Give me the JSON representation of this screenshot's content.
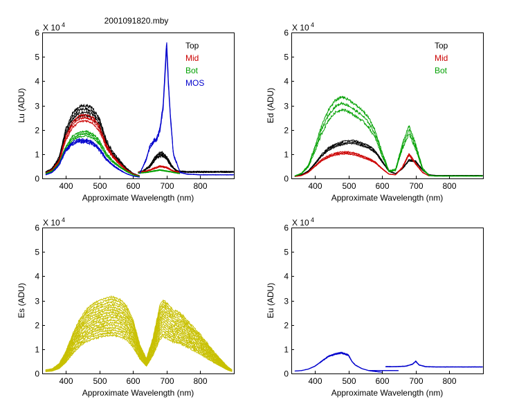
{
  "title": "2001091820.mby",
  "chart_data": [
    {
      "id": "lu",
      "type": "line",
      "ylabel": "Lu (ADU)",
      "xlabel": "Approximate Wavelength (nm)",
      "xlim": [
        330,
        900
      ],
      "xticks": [
        400,
        500,
        600,
        700,
        800
      ],
      "ylim": [
        0,
        6
      ],
      "yticks": [
        0,
        1,
        2,
        3,
        4,
        5,
        6
      ],
      "yscale_label": "X 10",
      "yscale_exp": "4",
      "legend": [
        {
          "label": "Top",
          "color": "#000000"
        },
        {
          "label": "Mid",
          "color": "#cc0000"
        },
        {
          "label": "Bot",
          "color": "#00a000"
        },
        {
          "label": "MOS",
          "color": "#0000cc"
        }
      ],
      "series": [
        {
          "name": "Top",
          "color": "#000000",
          "copies": 4,
          "spread": 0.22,
          "noise": 0.12,
          "segments": [
            {
              "x": [
                340,
                360,
                380,
                400,
                420,
                440,
                460,
                480,
                500,
                520,
                540,
                560,
                580,
                600,
                620
              ],
              "y": [
                0.25,
                0.4,
                0.8,
                1.9,
                2.5,
                2.75,
                2.8,
                2.7,
                2.3,
                1.5,
                1.0,
                0.7,
                0.4,
                0.2,
                0.1
              ]
            },
            {
              "x": [
                615,
                630,
                650,
                670,
                685,
                700,
                715,
                730,
                760,
                800,
                850,
                900
              ],
              "y": [
                0.25,
                0.3,
                0.5,
                0.9,
                1.0,
                0.85,
                0.5,
                0.3,
                0.27,
                0.27,
                0.27,
                0.27
              ]
            }
          ]
        },
        {
          "name": "Mid",
          "color": "#cc0000",
          "copies": 3,
          "spread": 0.15,
          "noise": 0.08,
          "segments": [
            {
              "x": [
                340,
                360,
                380,
                400,
                420,
                440,
                460,
                480,
                500,
                520,
                540,
                560,
                580,
                600,
                620
              ],
              "y": [
                0.22,
                0.35,
                0.7,
                1.65,
                2.2,
                2.45,
                2.5,
                2.4,
                2.05,
                1.35,
                0.9,
                0.6,
                0.35,
                0.18,
                0.1
              ]
            },
            {
              "x": [
                615,
                640,
                660,
                680,
                700,
                720,
                740
              ],
              "y": [
                0.25,
                0.3,
                0.4,
                0.5,
                0.45,
                0.3,
                0.25
              ]
            }
          ]
        },
        {
          "name": "Bot",
          "color": "#00a000",
          "copies": 3,
          "spread": 0.15,
          "noise": 0.07,
          "segments": [
            {
              "x": [
                340,
                360,
                380,
                400,
                420,
                440,
                460,
                480,
                500,
                520,
                540,
                560,
                580,
                600,
                620
              ],
              "y": [
                0.2,
                0.3,
                0.6,
                1.25,
                1.65,
                1.8,
                1.85,
                1.75,
                1.5,
                1.0,
                0.7,
                0.48,
                0.3,
                0.15,
                0.08
              ]
            },
            {
              "x": [
                615,
                640,
                660,
                680,
                700,
                720,
                740
              ],
              "y": [
                0.22,
                0.25,
                0.3,
                0.35,
                0.3,
                0.25,
                0.2
              ]
            }
          ]
        },
        {
          "name": "MOS",
          "color": "#0000cc",
          "copies": 3,
          "spread": 0.1,
          "noise": 0.1,
          "segments": [
            {
              "x": [
                340,
                360,
                380,
                400,
                420,
                440,
                460,
                480,
                500,
                520,
                540,
                560,
                580,
                600,
                620
              ],
              "y": [
                0.15,
                0.25,
                0.55,
                1.15,
                1.45,
                1.55,
                1.55,
                1.45,
                1.2,
                0.8,
                0.55,
                0.35,
                0.2,
                0.1,
                0.05
              ]
            },
            {
              "x": [
                620,
                640,
                650,
                660,
                670,
                680,
                690,
                695,
                700,
                705,
                710,
                720,
                740,
                760,
                800,
                850,
                900
              ],
              "y": [
                0.2,
                0.8,
                1.3,
                1.5,
                1.6,
                2.0,
                3.0,
                4.3,
                5.5,
                4.0,
                2.8,
                1.0,
                0.25,
                0.18,
                0.15,
                0.15,
                0.15
              ]
            }
          ]
        }
      ]
    },
    {
      "id": "ed",
      "type": "line",
      "ylabel": "Ed (ADU)",
      "xlabel": "Approximate Wavelength (nm)",
      "xlim": [
        330,
        900
      ],
      "xticks": [
        400,
        500,
        600,
        700,
        800
      ],
      "ylim": [
        0,
        6
      ],
      "yticks": [
        0,
        1,
        2,
        3,
        4,
        5,
        6
      ],
      "yscale_label": "X 10",
      "yscale_exp": "4",
      "legend": [
        {
          "label": "Top",
          "color": "#000000"
        },
        {
          "label": "Mid",
          "color": "#cc0000"
        },
        {
          "label": "Bot",
          "color": "#00a000"
        }
      ],
      "series": [
        {
          "name": "Top",
          "color": "#000000",
          "copies": 3,
          "spread": 0.12,
          "noise": 0.06,
          "segments": [
            {
              "x": [
                340,
                360,
                380,
                400,
                420,
                440,
                460,
                480,
                500,
                520,
                540,
                560,
                580,
                600,
                620,
                640,
                660,
                680,
                700,
                720,
                740,
                760,
                800,
                850,
                900
              ],
              "y": [
                0.1,
                0.15,
                0.3,
                0.6,
                0.95,
                1.2,
                1.35,
                1.45,
                1.5,
                1.5,
                1.4,
                1.3,
                1.1,
                0.7,
                0.3,
                0.2,
                0.4,
                0.75,
                0.7,
                0.35,
                0.15,
                0.12,
                0.12,
                0.12,
                0.12
              ]
            }
          ]
        },
        {
          "name": "Mid",
          "color": "#cc0000",
          "copies": 3,
          "spread": 0.12,
          "noise": 0.06,
          "segments": [
            {
              "x": [
                340,
                360,
                380,
                400,
                420,
                440,
                460,
                480,
                500,
                520,
                540,
                560,
                580,
                600,
                620,
                640,
                660,
                680,
                700,
                720,
                740
              ],
              "y": [
                0.08,
                0.12,
                0.25,
                0.5,
                0.75,
                0.9,
                1.0,
                1.05,
                1.05,
                1.0,
                0.9,
                0.8,
                0.65,
                0.4,
                0.18,
                0.15,
                0.45,
                1.0,
                0.6,
                0.25,
                0.1
              ]
            }
          ]
        },
        {
          "name": "Bot",
          "color": "#00a000",
          "copies": 3,
          "spread": 0.25,
          "noise": 0.1,
          "segments": [
            {
              "x": [
                340,
                360,
                380,
                400,
                420,
                440,
                460,
                480,
                500,
                520,
                540,
                560,
                580,
                600,
                620,
                640,
                660,
                680,
                700,
                720,
                740,
                760,
                800,
                850,
                900
              ],
              "y": [
                0.1,
                0.2,
                0.5,
                1.2,
                2.0,
                2.6,
                2.95,
                3.1,
                3.0,
                2.8,
                2.6,
                2.3,
                1.8,
                1.0,
                0.3,
                0.35,
                1.3,
                2.0,
                1.3,
                0.4,
                0.12,
                0.1,
                0.1,
                0.1,
                0.1
              ]
            }
          ]
        }
      ]
    },
    {
      "id": "es",
      "type": "line",
      "ylabel": "Es (ADU)",
      "xlabel": "Approximate Wavelength (nm)",
      "xlim": [
        330,
        900
      ],
      "xticks": [
        400,
        500,
        600,
        700,
        800
      ],
      "ylim": [
        0,
        6
      ],
      "yticks": [
        0,
        1,
        2,
        3,
        4,
        5,
        6
      ],
      "yscale_label": "X 10",
      "yscale_exp": "4",
      "legend": [],
      "series": [
        {
          "name": "Es",
          "color": "#c8c000",
          "copies": 16,
          "spread": 1.6,
          "spread_mode": "scale",
          "noise": 0.08,
          "segments": [
            {
              "x": [
                340,
                360,
                380,
                400,
                420,
                440,
                460,
                480,
                500,
                520,
                540,
                560,
                580,
                600,
                620,
                640,
                660,
                680,
                690,
                700,
                720,
                740,
                760,
                780,
                800,
                820,
                840,
                860,
                880,
                895
              ],
              "y": [
                0.15,
                0.2,
                0.4,
                0.9,
                1.6,
                2.2,
                2.6,
                2.85,
                3.0,
                3.1,
                3.15,
                3.05,
                2.8,
                2.2,
                1.2,
                0.6,
                1.5,
                2.8,
                3.05,
                2.9,
                2.6,
                2.5,
                2.2,
                1.9,
                1.6,
                1.25,
                0.9,
                0.6,
                0.3,
                0.15
              ]
            }
          ]
        }
      ]
    },
    {
      "id": "eu",
      "type": "line",
      "ylabel": "Eu (ADU)",
      "xlabel": "Approximate Wavelength (nm)",
      "xlim": [
        330,
        900
      ],
      "xticks": [
        400,
        500,
        600,
        700,
        800
      ],
      "ylim": [
        0,
        6
      ],
      "yticks": [
        0,
        1,
        2,
        3,
        4,
        5,
        6
      ],
      "yscale_label": "X 10",
      "yscale_exp": "4",
      "legend": [],
      "series": [
        {
          "name": "Eu",
          "color": "#0000cc",
          "copies": 3,
          "spread": 0.08,
          "noise": 0.04,
          "segments": [
            {
              "x": [
                340,
                360,
                380,
                400,
                420,
                440,
                460,
                480,
                500,
                510,
                520,
                540,
                560,
                580,
                600
              ],
              "y": [
                0.1,
                0.12,
                0.18,
                0.3,
                0.5,
                0.7,
                0.8,
                0.85,
                0.75,
                0.5,
                0.35,
                0.2,
                0.12,
                0.08,
                0.05
              ]
            },
            {
              "x": [
                560,
                600,
                640,
                650
              ],
              "y": [
                0.12,
                0.12,
                0.12,
                0.12
              ]
            },
            {
              "x": [
                610,
                640,
                670,
                690,
                700,
                710,
                730,
                760,
                800,
                850,
                900
              ],
              "y": [
                0.28,
                0.28,
                0.3,
                0.38,
                0.5,
                0.35,
                0.28,
                0.27,
                0.27,
                0.27,
                0.27
              ]
            }
          ]
        }
      ]
    }
  ]
}
